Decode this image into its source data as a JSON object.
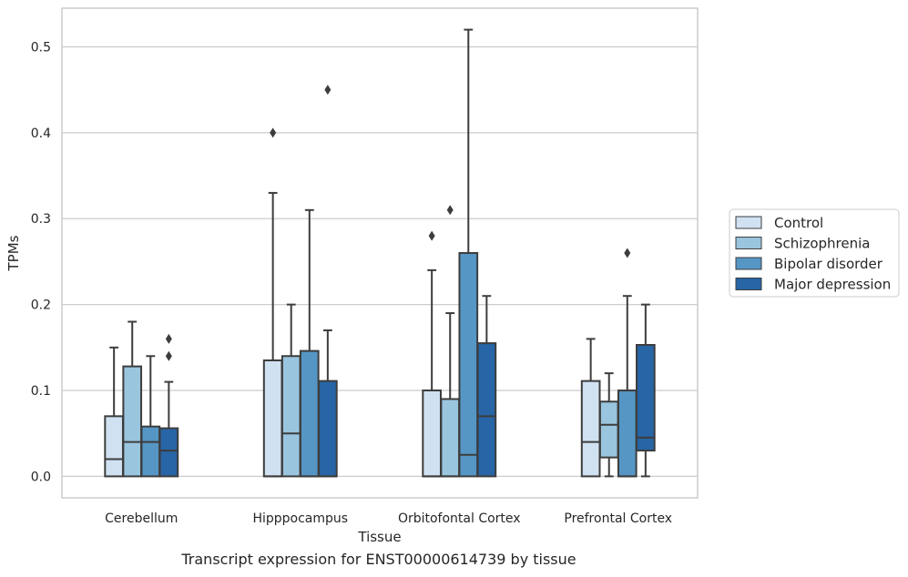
{
  "caption": "Transcript expression for ENST00000614739 by tissue",
  "chart_data": {
    "type": "box",
    "xlabel": "Tissue",
    "ylabel": "TPMs",
    "ylim": [
      -0.025,
      0.545
    ],
    "yticks": [
      0.0,
      0.1,
      0.2,
      0.3,
      0.4,
      0.5
    ],
    "ytick_labels": [
      "0.0",
      "0.1",
      "0.2",
      "0.3",
      "0.4",
      "0.5"
    ],
    "grid": true,
    "legend_position": "right",
    "categories": [
      "Cerebellum",
      "Hipppocampus",
      "Orbitofontal Cortex",
      "Prefrontal Cortex"
    ],
    "series": [
      {
        "name": "Control",
        "color": "#d0e1f2",
        "boxes": [
          {
            "whislo": 0.0,
            "q1": 0.0,
            "med": 0.02,
            "q3": 0.07,
            "whishi": 0.15,
            "fliers": []
          },
          {
            "whislo": 0.0,
            "q1": 0.0,
            "med": 0.0,
            "q3": 0.135,
            "whishi": 0.33,
            "fliers": [
              0.4
            ]
          },
          {
            "whislo": 0.0,
            "q1": 0.0,
            "med": 0.0,
            "q3": 0.1,
            "whishi": 0.24,
            "fliers": [
              0.28
            ]
          },
          {
            "whislo": 0.0,
            "q1": 0.0,
            "med": 0.04,
            "q3": 0.111,
            "whishi": 0.16,
            "fliers": []
          }
        ]
      },
      {
        "name": "Schizophrenia",
        "color": "#9ac5de",
        "boxes": [
          {
            "whislo": 0.0,
            "q1": 0.0,
            "med": 0.04,
            "q3": 0.128,
            "whishi": 0.18,
            "fliers": []
          },
          {
            "whislo": 0.0,
            "q1": 0.0,
            "med": 0.05,
            "q3": 0.14,
            "whishi": 0.2,
            "fliers": []
          },
          {
            "whislo": 0.0,
            "q1": 0.0,
            "med": 0.0,
            "q3": 0.09,
            "whishi": 0.19,
            "fliers": [
              0.31
            ]
          },
          {
            "whislo": 0.0,
            "q1": 0.022,
            "med": 0.06,
            "q3": 0.087,
            "whishi": 0.12,
            "fliers": []
          }
        ]
      },
      {
        "name": "Bipolar disorder",
        "color": "#5596c5",
        "boxes": [
          {
            "whislo": 0.0,
            "q1": 0.0,
            "med": 0.04,
            "q3": 0.058,
            "whishi": 0.14,
            "fliers": []
          },
          {
            "whislo": 0.0,
            "q1": 0.0,
            "med": 0.0,
            "q3": 0.146,
            "whishi": 0.31,
            "fliers": []
          },
          {
            "whislo": 0.0,
            "q1": 0.0,
            "med": 0.025,
            "q3": 0.26,
            "whishi": 0.52,
            "fliers": []
          },
          {
            "whislo": 0.0,
            "q1": 0.0,
            "med": 0.0,
            "q3": 0.1,
            "whishi": 0.21,
            "fliers": [
              0.26
            ]
          }
        ]
      },
      {
        "name": "Major depression",
        "color": "#2765a6",
        "boxes": [
          {
            "whislo": 0.0,
            "q1": 0.0,
            "med": 0.03,
            "q3": 0.056,
            "whishi": 0.11,
            "fliers": [
              0.14,
              0.16
            ]
          },
          {
            "whislo": 0.0,
            "q1": 0.0,
            "med": 0.0,
            "q3": 0.111,
            "whishi": 0.17,
            "fliers": [
              0.45
            ]
          },
          {
            "whislo": 0.0,
            "q1": 0.0,
            "med": 0.07,
            "q3": 0.155,
            "whishi": 0.21,
            "fliers": []
          },
          {
            "whislo": 0.0,
            "q1": 0.03,
            "med": 0.045,
            "q3": 0.153,
            "whishi": 0.2,
            "fliers": []
          }
        ]
      }
    ]
  }
}
